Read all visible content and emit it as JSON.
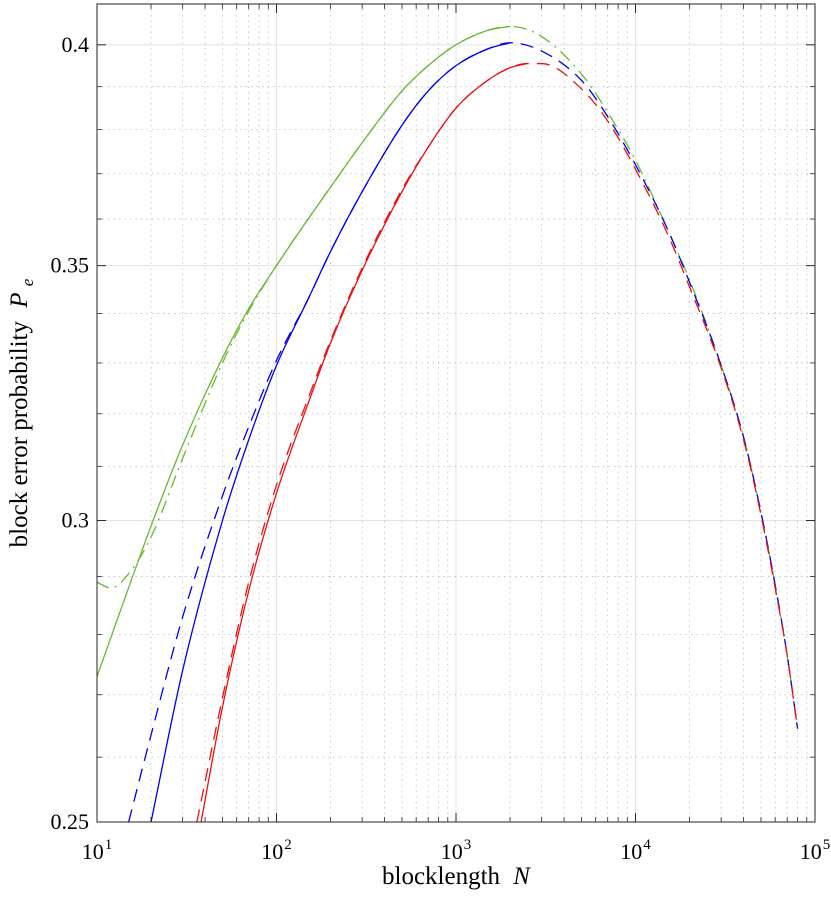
{
  "chart_data": {
    "type": "line",
    "title": "",
    "xlabel": "blocklength",
    "xlabel_symbol": "N",
    "ylabel": "block error probability",
    "ylabel_symbol": "P",
    "ylabel_subscript": "e",
    "xscale": "log",
    "yscale": "log",
    "xlim": [
      10,
      100000
    ],
    "ylim": [
      0.25,
      0.41
    ],
    "grid": true,
    "minor_grid": true,
    "legend": "none",
    "x_tick_labels": [
      {
        "base": "10",
        "exp": "1"
      },
      {
        "base": "10",
        "exp": "2"
      },
      {
        "base": "10",
        "exp": "3"
      },
      {
        "base": "10",
        "exp": "4"
      },
      {
        "base": "10",
        "exp": "5"
      }
    ],
    "y_ticks": [
      0.25,
      0.3,
      0.35,
      0.4
    ],
    "y_tick_labels": [
      "0.25",
      "0.3",
      "0.35",
      "0.4"
    ],
    "series": [
      {
        "color": "#66bb33",
        "dash": "solid",
        "x": [
          10,
          20,
          30,
          50,
          70,
          100,
          150,
          200,
          300,
          500,
          700,
          1000,
          1500,
          2000
        ],
        "y": [
          0.273,
          0.299,
          0.314,
          0.331,
          0.341,
          0.35,
          0.36,
          0.367,
          0.377,
          0.389,
          0.395,
          0.4,
          0.4035,
          0.4045
        ]
      },
      {
        "color": "#66bb33",
        "dash": "dashdot",
        "x": [
          10,
          12,
          15,
          20,
          30,
          50,
          70,
          100,
          150,
          200,
          300,
          500,
          700,
          1000,
          1500,
          2000,
          3000,
          5000,
          7000,
          10000,
          15000,
          20000,
          30000,
          40000,
          50000,
          60000,
          70000,
          80000
        ],
        "y": [
          0.289,
          0.288,
          0.2905,
          0.297,
          0.3115,
          0.33,
          0.3405,
          0.35,
          0.36,
          0.367,
          0.377,
          0.389,
          0.395,
          0.4,
          0.4035,
          0.4045,
          0.402,
          0.393,
          0.384,
          0.373,
          0.358,
          0.347,
          0.3295,
          0.3155,
          0.3015,
          0.2885,
          0.2765,
          0.2645
        ]
      },
      {
        "color": "#0000ee",
        "dash": "solid",
        "x": [
          20,
          30,
          50,
          70,
          100,
          150,
          200,
          300,
          500,
          700,
          1000,
          1500,
          2000
        ],
        "y": [
          0.25,
          0.274,
          0.3,
          0.315,
          0.3295,
          0.343,
          0.353,
          0.366,
          0.381,
          0.389,
          0.395,
          0.399,
          0.4005
        ]
      },
      {
        "color": "#0000ee",
        "dash": "dashed",
        "x": [
          15,
          20,
          30,
          50,
          70,
          100,
          150,
          200,
          300,
          500,
          700,
          1000,
          1500,
          2000,
          3000,
          5000,
          7000,
          10000,
          15000,
          20000,
          30000,
          40000,
          50000,
          60000,
          70000,
          80000
        ],
        "y": [
          0.25,
          0.2635,
          0.283,
          0.3045,
          0.3175,
          0.3305,
          0.343,
          0.353,
          0.366,
          0.381,
          0.389,
          0.395,
          0.399,
          0.4005,
          0.3985,
          0.3915,
          0.383,
          0.372,
          0.358,
          0.3465,
          0.3295,
          0.3155,
          0.3015,
          0.2885,
          0.2765,
          0.2645
        ]
      },
      {
        "color": "#ee1111",
        "dash": "solid",
        "x": [
          38,
          50,
          70,
          100,
          150,
          200,
          300,
          500,
          700,
          1000,
          1500,
          2000,
          2500
        ],
        "y": [
          0.25,
          0.268,
          0.2875,
          0.305,
          0.322,
          0.334,
          0.349,
          0.366,
          0.376,
          0.385,
          0.3915,
          0.3945,
          0.3955
        ]
      },
      {
        "color": "#ee1111",
        "dash": "dashed",
        "x": [
          36,
          50,
          70,
          100,
          150,
          200,
          300,
          500,
          700,
          1000,
          1500,
          2000,
          2500,
          3000,
          5000,
          7000,
          10000,
          15000,
          20000,
          30000,
          40000,
          50000,
          60000,
          70000,
          80000
        ],
        "y": [
          0.25,
          0.2695,
          0.289,
          0.3065,
          0.323,
          0.3345,
          0.3495,
          0.3665,
          0.376,
          0.385,
          0.3915,
          0.3945,
          0.3955,
          0.3955,
          0.3895,
          0.382,
          0.371,
          0.357,
          0.3455,
          0.329,
          0.315,
          0.301,
          0.288,
          0.2765,
          0.2645
        ]
      }
    ]
  }
}
